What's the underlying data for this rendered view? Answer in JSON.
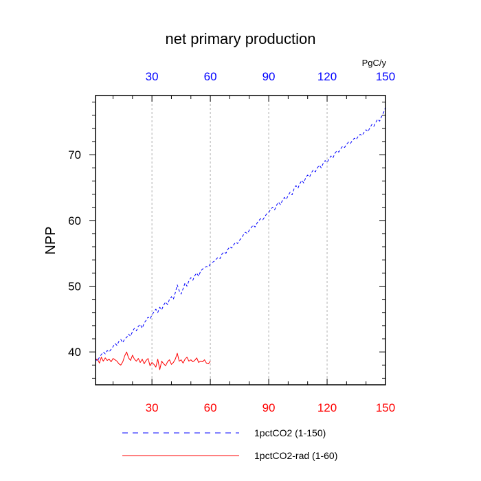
{
  "chart_data": {
    "type": "line",
    "title": "net primary production",
    "ylabel": "NPP",
    "units": "PgC/y",
    "xlim": [
      1,
      150
    ],
    "ylim": [
      35,
      79
    ],
    "bottom_ticks": [
      30,
      60,
      90,
      120,
      150
    ],
    "top_ticks": [
      30,
      60,
      90,
      120,
      150
    ],
    "y_ticks": [
      40,
      50,
      60,
      70
    ],
    "grid": "vertical dashed",
    "legend_position": "bottom",
    "colors": {
      "series_1": "#0000ff",
      "series_2": "#ff0000",
      "top_axis_labels": "#0000ff",
      "bottom_axis_labels": "#ff0000"
    },
    "series": [
      {
        "name": "1pctCO2 (1-150)",
        "style": "dashed",
        "x_start": 1,
        "values": [
          39.0,
          38.6,
          39.2,
          39.6,
          40.0,
          39.7,
          40.2,
          40.0,
          40.4,
          40.8,
          41.3,
          41.0,
          41.6,
          41.9,
          41.4,
          42.0,
          42.2,
          42.7,
          42.4,
          43.1,
          43.6,
          43.2,
          43.9,
          44.2,
          43.6,
          44.4,
          44.8,
          45.3,
          45.0,
          45.6,
          46.1,
          46.5,
          46.0,
          46.8,
          46.4,
          47.1,
          47.6,
          47.2,
          48.0,
          48.4,
          48.0,
          49.0,
          50.2,
          49.3,
          48.8,
          49.6,
          50.5,
          50.0,
          50.8,
          51.3,
          50.9,
          51.6,
          52.0,
          51.5,
          52.3,
          52.6,
          52.8,
          53.0,
          52.9,
          53.4,
          53.6,
          53.8,
          54.1,
          54.4,
          54.2,
          54.9,
          55.2,
          55.0,
          55.6,
          56.0,
          55.8,
          56.3,
          56.7,
          56.5,
          57.0,
          57.3,
          57.8,
          58.2,
          58.0,
          58.5,
          58.9,
          59.3,
          59.0,
          59.6,
          60.0,
          60.3,
          60.1,
          60.6,
          61.0,
          61.2,
          61.7,
          62.0,
          61.6,
          62.3,
          62.8,
          62.4,
          63.0,
          63.5,
          63.2,
          63.8,
          64.3,
          63.9,
          64.8,
          65.3,
          64.9,
          65.6,
          66.1,
          65.7,
          66.5,
          66.9,
          66.6,
          67.3,
          67.7,
          67.4,
          68.0,
          68.4,
          68.0,
          68.7,
          69.1,
          68.8,
          69.4,
          69.8,
          69.5,
          70.2,
          70.6,
          70.4,
          70.9,
          71.3,
          71.1,
          71.6,
          71.9,
          71.7,
          72.2,
          72.5,
          72.3,
          72.8,
          73.1,
          72.9,
          73.4,
          73.8,
          73.5,
          74.1,
          74.6,
          74.3,
          74.9,
          75.4,
          75.1,
          75.8,
          76.4,
          77.2
        ]
      },
      {
        "name": "1pctCO2-rad (1-60)",
        "style": "solid",
        "x_start": 1,
        "values": [
          38.8,
          38.9,
          38.3,
          39.2,
          38.6,
          39.1,
          38.7,
          38.9,
          38.5,
          39.0,
          38.8,
          38.6,
          38.2,
          38.0,
          38.5,
          39.4,
          40.0,
          39.1,
          38.7,
          39.5,
          38.9,
          38.6,
          39.0,
          38.4,
          38.9,
          38.2,
          38.7,
          39.0,
          37.9,
          38.4,
          38.1,
          37.7,
          38.9,
          37.3,
          38.6,
          38.2,
          37.9,
          38.5,
          38.8,
          38.1,
          38.4,
          38.9,
          39.8,
          38.6,
          38.8,
          38.3,
          38.9,
          39.2,
          38.6,
          38.8,
          38.5,
          38.7,
          39.1,
          38.4,
          38.6,
          38.5,
          38.8,
          38.3,
          38.2,
          38.6
        ]
      }
    ]
  }
}
